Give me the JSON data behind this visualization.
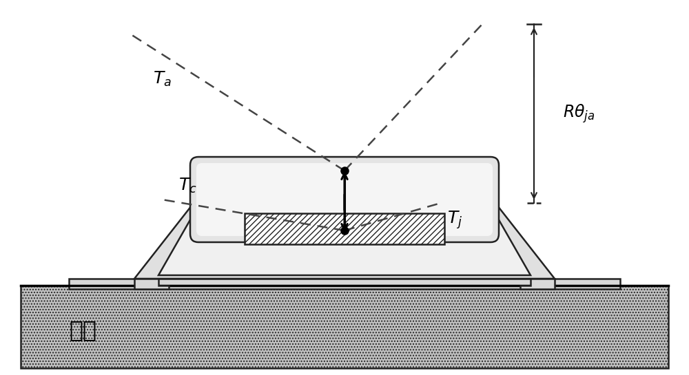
{
  "bg_color": "#ffffff",
  "line_color": "#222222",
  "dashed_color": "#444444",
  "pkg_fill": "#e8e8e8",
  "cap_fill": "#dedede",
  "sub_fill": "#b0b0b0",
  "die_fill": "#ffffff",
  "substrate_text": "基板",
  "label_Ta": "T_a",
  "label_Tc": "T_c",
  "label_Tj": "T_j",
  "label_Rthja": "Rθ ja"
}
